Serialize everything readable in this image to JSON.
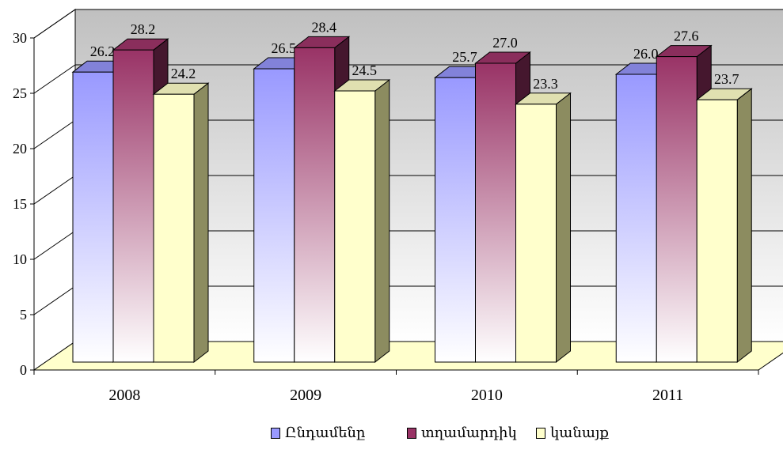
{
  "chart_data": {
    "type": "bar",
    "categories": [
      "2008",
      "2009",
      "2010",
      "2011"
    ],
    "series": [
      {
        "name": "Ընդամենը",
        "values": [
          26.2,
          26.5,
          25.7,
          26.0
        ],
        "color": "#9999ff"
      },
      {
        "name": "տղամարդիկ",
        "values": [
          28.2,
          28.4,
          27.0,
          27.6
        ],
        "color": "#993366"
      },
      {
        "name": "կանայք",
        "values": [
          24.2,
          24.5,
          23.3,
          23.7
        ],
        "color": "#ffffcc"
      }
    ],
    "data_labels": [
      [
        "26.2",
        "26.5",
        "25.7",
        "26.0"
      ],
      [
        "28.2",
        "28.4",
        "27.0",
        "27.6"
      ],
      [
        "24.2",
        "24.5",
        "23.3",
        "23.7"
      ]
    ],
    "y_ticks": [
      "0",
      "5",
      "10",
      "15",
      "20",
      "25",
      "30"
    ],
    "ylim": [
      0,
      30
    ],
    "grid": true,
    "legend_position": "bottom",
    "style": "3d-clustered-column",
    "floor_color": "#ffffcc",
    "back_wall_gradient": [
      "#c0c0c0",
      "#ffffff"
    ]
  }
}
